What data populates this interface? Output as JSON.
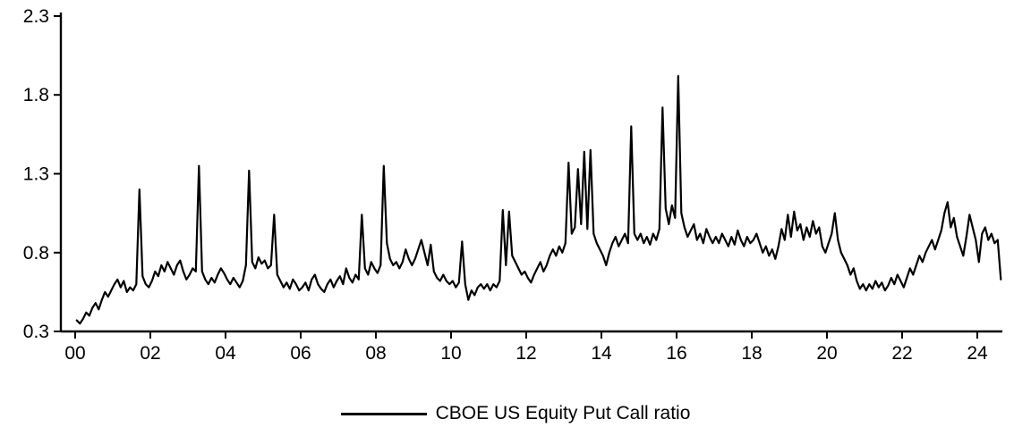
{
  "chart_data": {
    "type": "line",
    "title": "",
    "xlabel": "",
    "ylabel": "",
    "legend": "CBOE US Equity Put Call ratio",
    "legend_position": "bottom-center",
    "line_color": "#000000",
    "background_color": "#ffffff",
    "grid": false,
    "xlim": [
      2000,
      2024.7
    ],
    "ylim": [
      0.3,
      2.3
    ],
    "y_ticks": [
      2.3,
      1.8,
      1.3,
      0.8,
      0.3
    ],
    "y_tick_labels": [
      "2.3",
      "1.8",
      "1.3",
      "0.8",
      "0.3"
    ],
    "x_ticks": [
      2000,
      2002,
      2004,
      2006,
      2008,
      2010,
      2012,
      2014,
      2016,
      2018,
      2020,
      2022,
      2024
    ],
    "x_tick_labels": [
      "00",
      "02",
      "04",
      "06",
      "08",
      "10",
      "12",
      "14",
      "16",
      "18",
      "20",
      "22",
      "24"
    ],
    "series": [
      {
        "name": "CBOE US Equity Put Call ratio",
        "frequency": "monthly",
        "x_start": 2000.042,
        "x_step": 0.0833333,
        "values": [
          0.37,
          0.35,
          0.38,
          0.42,
          0.4,
          0.45,
          0.48,
          0.44,
          0.5,
          0.55,
          0.52,
          0.56,
          0.6,
          0.63,
          0.58,
          0.62,
          0.55,
          0.58,
          0.56,
          0.6,
          1.2,
          0.65,
          0.6,
          0.58,
          0.62,
          0.68,
          0.65,
          0.72,
          0.68,
          0.74,
          0.7,
          0.66,
          0.72,
          0.75,
          0.68,
          0.63,
          0.66,
          0.7,
          0.68,
          1.35,
          0.68,
          0.63,
          0.6,
          0.64,
          0.61,
          0.66,
          0.7,
          0.67,
          0.63,
          0.6,
          0.64,
          0.61,
          0.58,
          0.62,
          0.72,
          1.32,
          0.74,
          0.7,
          0.77,
          0.73,
          0.75,
          0.7,
          0.72,
          1.04,
          0.66,
          0.62,
          0.58,
          0.61,
          0.57,
          0.63,
          0.6,
          0.56,
          0.58,
          0.61,
          0.56,
          0.63,
          0.66,
          0.6,
          0.57,
          0.55,
          0.6,
          0.63,
          0.58,
          0.62,
          0.65,
          0.6,
          0.7,
          0.64,
          0.61,
          0.66,
          0.63,
          1.04,
          0.7,
          0.66,
          0.74,
          0.7,
          0.67,
          0.72,
          1.35,
          0.86,
          0.76,
          0.72,
          0.74,
          0.7,
          0.74,
          0.82,
          0.76,
          0.72,
          0.76,
          0.82,
          0.88,
          0.8,
          0.72,
          0.85,
          0.68,
          0.64,
          0.62,
          0.66,
          0.62,
          0.6,
          0.62,
          0.58,
          0.61,
          0.87,
          0.6,
          0.5,
          0.56,
          0.53,
          0.58,
          0.6,
          0.57,
          0.6,
          0.56,
          0.6,
          0.58,
          0.62,
          1.07,
          0.72,
          1.06,
          0.78,
          0.74,
          0.7,
          0.66,
          0.68,
          0.64,
          0.61,
          0.66,
          0.7,
          0.74,
          0.68,
          0.72,
          0.78,
          0.82,
          0.78,
          0.84,
          0.8,
          0.86,
          1.37,
          0.92,
          0.96,
          1.33,
          0.98,
          1.44,
          0.95,
          1.45,
          0.92,
          0.86,
          0.82,
          0.78,
          0.72,
          0.8,
          0.86,
          0.9,
          0.84,
          0.88,
          0.92,
          0.86,
          1.6,
          0.92,
          0.88,
          0.92,
          0.86,
          0.9,
          0.85,
          0.92,
          0.88,
          0.95,
          1.72,
          1.08,
          0.98,
          1.1,
          1.02,
          1.92,
          1.05,
          0.96,
          0.9,
          0.94,
          0.98,
          0.88,
          0.92,
          0.86,
          0.95,
          0.9,
          0.86,
          0.9,
          0.86,
          0.92,
          0.88,
          0.84,
          0.9,
          0.85,
          0.94,
          0.88,
          0.84,
          0.9,
          0.86,
          0.88,
          0.92,
          0.86,
          0.8,
          0.84,
          0.78,
          0.82,
          0.76,
          0.84,
          0.95,
          0.88,
          1.04,
          0.9,
          1.06,
          0.94,
          0.98,
          0.88,
          0.96,
          0.9,
          1.0,
          0.92,
          0.96,
          0.84,
          0.8,
          0.86,
          0.92,
          1.05,
          0.88,
          0.8,
          0.76,
          0.72,
          0.66,
          0.7,
          0.62,
          0.57,
          0.6,
          0.56,
          0.6,
          0.57,
          0.62,
          0.58,
          0.61,
          0.56,
          0.59,
          0.64,
          0.6,
          0.66,
          0.62,
          0.58,
          0.64,
          0.7,
          0.66,
          0.72,
          0.78,
          0.74,
          0.8,
          0.84,
          0.88,
          0.82,
          0.88,
          0.94,
          1.05,
          1.12,
          0.96,
          1.02,
          0.9,
          0.84,
          0.78,
          0.9,
          1.04,
          0.96,
          0.88,
          0.74,
          0.92,
          0.96,
          0.88,
          0.92,
          0.86,
          0.88,
          0.63
        ]
      }
    ]
  }
}
